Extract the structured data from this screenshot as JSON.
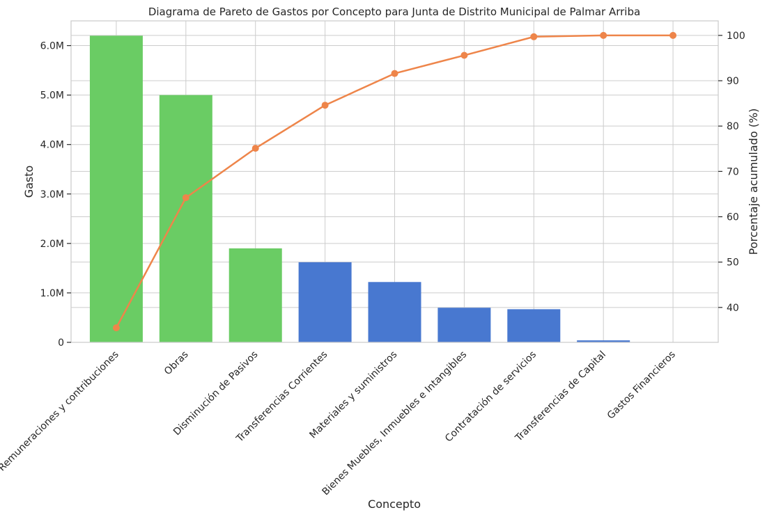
{
  "chart_data": {
    "type": "bar",
    "title": "Diagrama de Pareto de Gastos por Concepto para Junta de Distrito Municipal de Palmar Arriba",
    "xlabel": "Concepto",
    "ylabel": "Gasto",
    "y2label": "Porcentaje acumulado (%)",
    "categories": [
      "Remuneraciones y contribuciones",
      "Obras",
      "Disminución de Pasivos",
      "Transferencias Corrientes",
      "Materiales y suministros",
      "Bienes Muebles, Inmuebles e Intangibles",
      "Contratación de servicios",
      "Transferencias de Capital",
      "Gastos Financieros"
    ],
    "values": [
      6200000,
      5000000,
      1900000,
      1620000,
      1220000,
      700000,
      670000,
      40000,
      2000
    ],
    "bar_colors": [
      "#6acc64",
      "#6acc64",
      "#6acc64",
      "#4878d0",
      "#4878d0",
      "#4878d0",
      "#4878d0",
      "#4878d0",
      "#4878d0"
    ],
    "cumulative_percent": [
      35.5,
      64.2,
      75.1,
      84.6,
      91.6,
      95.6,
      99.7,
      100.0,
      100.0
    ],
    "line_color": "#ee854a",
    "ylim": [
      0,
      6500000
    ],
    "y_ticks": [
      0,
      1000000,
      2000000,
      3000000,
      4000000,
      5000000,
      6000000
    ],
    "y_tick_labels": [
      "0",
      "1.0M",
      "2.0M",
      "3.0M",
      "4.0M",
      "5.0M",
      "6.0M"
    ],
    "y2lim": [
      32.3,
      103.2
    ],
    "y2_ticks": [
      40,
      50,
      60,
      70,
      80,
      90,
      100
    ],
    "y2_tick_labels": [
      "40",
      "50",
      "60",
      "70",
      "80",
      "90",
      "100"
    ],
    "grid": true
  }
}
